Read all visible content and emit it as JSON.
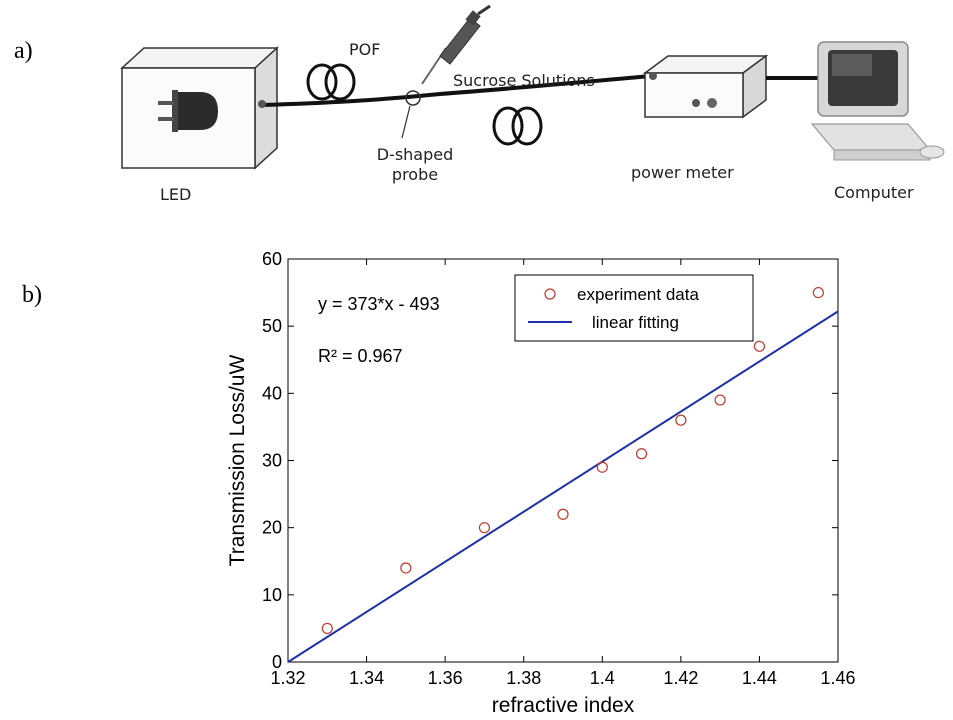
{
  "panels": {
    "a": "a)",
    "b": "b)"
  },
  "diagram": {
    "pof_label": "POF",
    "sucrose_label": "Sucrose Solutions",
    "probe_label_line1": "D-shaped",
    "probe_label_line2": "probe",
    "led_label": "LED",
    "power_meter_label": "power meter",
    "computer_label": "Computer"
  },
  "chart_data": {
    "type": "scatter",
    "xlabel": "refractive index",
    "ylabel": "Transmission Loss/uW",
    "xlim": [
      1.32,
      1.46
    ],
    "ylim": [
      0,
      60
    ],
    "xticks": [
      "1.32",
      "1.34",
      "1.36",
      "1.38",
      "1.4",
      "1.42",
      "1.44",
      "1.46"
    ],
    "yticks": [
      "0",
      "10",
      "20",
      "30",
      "40",
      "50",
      "60"
    ],
    "grid": false,
    "legend_position": "top-right",
    "legend": [
      "experiment data",
      "linear fitting"
    ],
    "annotations": {
      "equation": "y = 373*x - 493",
      "r_squared": "R² = 0.967"
    },
    "series": [
      {
        "name": "experiment data",
        "kind": "scatter",
        "color": "#c0392b",
        "x": [
          1.33,
          1.35,
          1.37,
          1.39,
          1.4,
          1.41,
          1.42,
          1.43,
          1.44,
          1.455
        ],
        "y": [
          5,
          14,
          20,
          22,
          29,
          31,
          36,
          39,
          47,
          55
        ]
      },
      {
        "name": "linear fitting",
        "kind": "line",
        "color": "#1f2fa8",
        "x": [
          1.32,
          1.46
        ],
        "y": [
          0,
          52.2
        ]
      }
    ]
  }
}
